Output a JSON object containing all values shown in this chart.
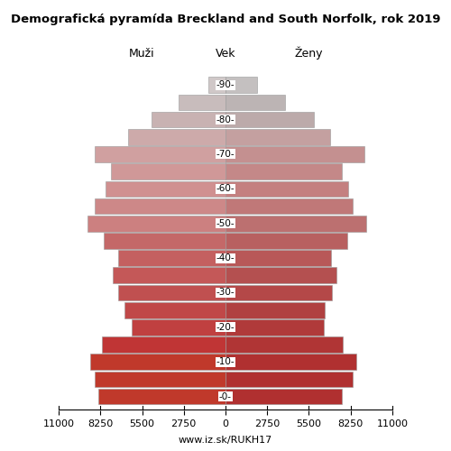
{
  "title": "Demografická pyramída Breckland and South Norfolk, rok 2019",
  "label_men": "Muži",
  "label_women": "Ženy",
  "label_age": "Vek",
  "footer": "www.iz.sk/RUKH17",
  "age_groups": [
    0,
    5,
    10,
    15,
    20,
    25,
    30,
    35,
    40,
    45,
    50,
    55,
    60,
    65,
    70,
    75,
    80,
    85,
    90
  ],
  "men_values": [
    8400,
    8650,
    8900,
    8150,
    6200,
    6650,
    7100,
    7450,
    7050,
    8050,
    9100,
    8650,
    7900,
    7550,
    8650,
    6400,
    4850,
    3100,
    1100
  ],
  "women_values": [
    7700,
    8400,
    8600,
    7750,
    6500,
    6550,
    7000,
    7300,
    6950,
    8050,
    9250,
    8400,
    8100,
    7650,
    9150,
    6900,
    5800,
    3900,
    2100
  ],
  "xlim": 11000,
  "xticks": [
    0,
    2750,
    5500,
    8250,
    11000
  ],
  "men_colors": [
    "#c0392b",
    "#c0392b",
    "#c0392b",
    "#c03535",
    "#c04040",
    "#c04848",
    "#c05050",
    "#c45858",
    "#c46060",
    "#c46868",
    "#cc8080",
    "#cd8888",
    "#d09090",
    "#d09898",
    "#d0a0a0",
    "#cdaaaa",
    "#c8b2b2",
    "#c8bcbc",
    "#d0c8c8"
  ],
  "women_colors": [
    "#b03030",
    "#b03030",
    "#b03030",
    "#b03535",
    "#b03a3a",
    "#b04040",
    "#b44848",
    "#b45050",
    "#b85858",
    "#b86060",
    "#bc7070",
    "#c07878",
    "#c48080",
    "#c48888",
    "#c49090",
    "#c4a0a0",
    "#bcaaaa",
    "#bcb4b4",
    "#c4c0c0"
  ],
  "background_color": "#ffffff",
  "edgecolor": "#999999"
}
